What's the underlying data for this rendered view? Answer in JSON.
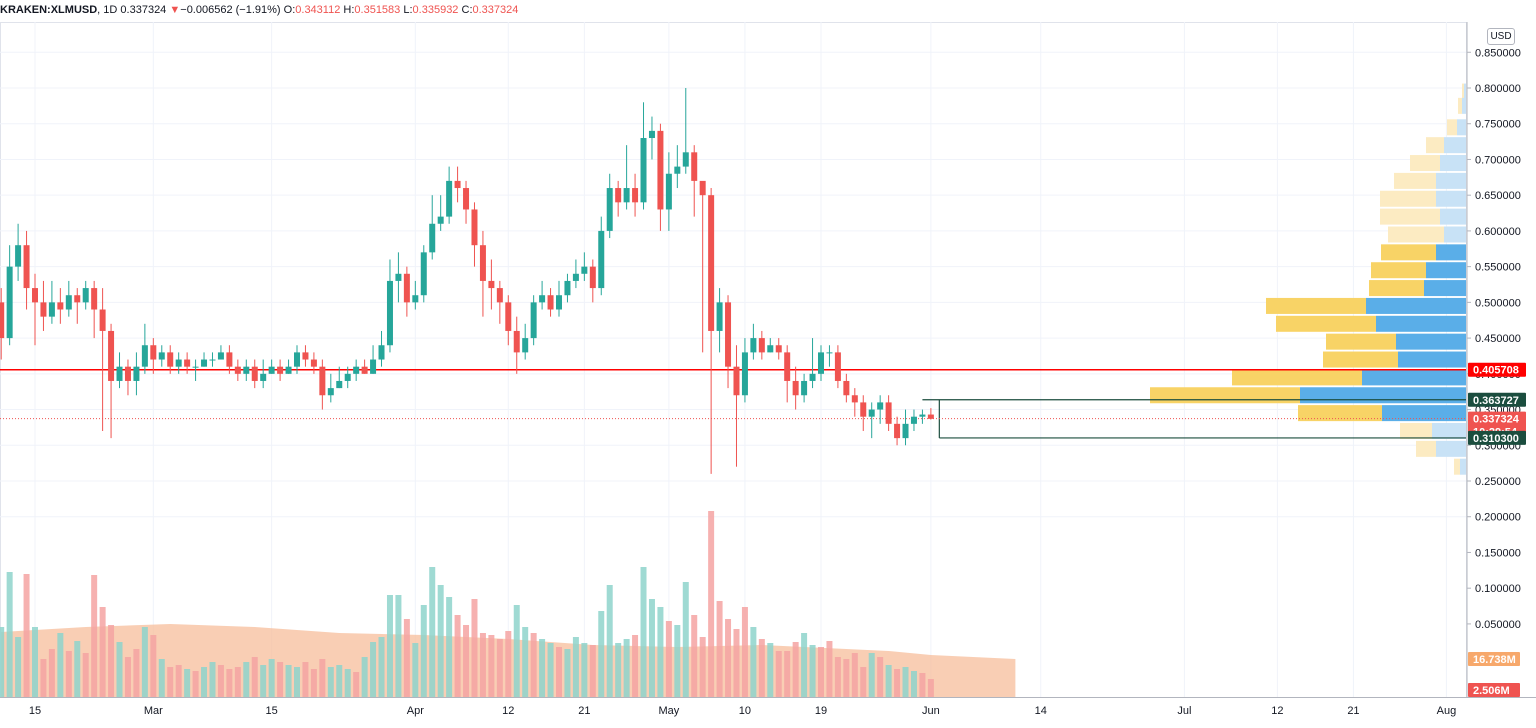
{
  "header": {
    "symbol": "KRAKEN:XLMUSD",
    "interval": "1D",
    "last": "0.337324",
    "arrow": "▼",
    "change": "−0.006562 (−1.91%)",
    "o_label": "O:",
    "o": "0.343112",
    "h_label": "H:",
    "h": "0.351583",
    "l_label": "L:",
    "l": "0.335932",
    "c_label": "C:",
    "c": "0.337324"
  },
  "currency": "USD",
  "colors": {
    "up": "#26a69a",
    "down": "#ef5350",
    "vol_up": "#8ed3cb",
    "vol_down": "#f4a3a2",
    "vol_ma": "#f7b994",
    "level": "#ff0000",
    "box": "#1b4d3e",
    "vp_blue": "#5aaee8",
    "vp_yellow": "#f8d366",
    "vp_blue_light": "#c8e2f6",
    "vp_yellow_light": "#fcebc2"
  },
  "chart_data": {
    "type": "candlestick",
    "y_ticks": [
      "0.850000",
      "0.800000",
      "0.750000",
      "0.700000",
      "0.650000",
      "0.600000",
      "0.550000",
      "0.500000",
      "0.450000",
      "0.400000",
      "0.350000",
      "0.300000",
      "0.250000",
      "0.200000",
      "0.150000",
      "0.100000",
      "0.050000"
    ],
    "y_tick_values": [
      0.85,
      0.8,
      0.75,
      0.7,
      0.65,
      0.6,
      0.55,
      0.5,
      0.45,
      0.4,
      0.35,
      0.3,
      0.25,
      0.2,
      0.15,
      0.1,
      0.05
    ],
    "ylim": [
      0.0,
      0.87
    ],
    "x_ticks": [
      {
        "label": "15",
        "day": 0
      },
      {
        "label": "Mar",
        "day": 14
      },
      {
        "label": "15",
        "day": 28
      },
      {
        "label": "Apr",
        "day": 45
      },
      {
        "label": "12",
        "day": 56
      },
      {
        "label": "21",
        "day": 65
      },
      {
        "label": "May",
        "day": 75
      },
      {
        "label": "10",
        "day": 84
      },
      {
        "label": "19",
        "day": 93
      },
      {
        "label": "Jun",
        "day": 106
      },
      {
        "label": "14",
        "day": 119
      },
      {
        "label": "Jul",
        "day": 136
      },
      {
        "label": "12",
        "day": 147
      },
      {
        "label": "21",
        "day": 156
      },
      {
        "label": "Aug",
        "day": 167
      }
    ],
    "price_tags": {
      "level": "0.405708",
      "box_top": "0.363727",
      "last": "0.337324",
      "countdown": "10:29:54",
      "box_bottom": "0.310300",
      "vol_ma": "16.738M",
      "vol_last": "2.506M"
    },
    "level_value": 0.4057,
    "box": {
      "top": 0.3637,
      "bottom": 0.3103,
      "start_day": 110,
      "end_day": 165
    },
    "last_value": 0.3373,
    "candles": [
      [
        0.5,
        0.45,
        0.52,
        0.42
      ],
      [
        0.45,
        0.55,
        0.58,
        0.44
      ],
      [
        0.55,
        0.58,
        0.61,
        0.53
      ],
      [
        0.58,
        0.52,
        0.6,
        0.49
      ],
      [
        0.52,
        0.5,
        0.54,
        0.44
      ],
      [
        0.5,
        0.48,
        0.53,
        0.46
      ],
      [
        0.48,
        0.5,
        0.53,
        0.47
      ],
      [
        0.5,
        0.49,
        0.52,
        0.47
      ],
      [
        0.49,
        0.51,
        0.53,
        0.48
      ],
      [
        0.51,
        0.5,
        0.52,
        0.47
      ],
      [
        0.5,
        0.52,
        0.53,
        0.49
      ],
      [
        0.52,
        0.49,
        0.53,
        0.45
      ],
      [
        0.49,
        0.46,
        0.52,
        0.32
      ],
      [
        0.46,
        0.39,
        0.47,
        0.31
      ],
      [
        0.39,
        0.41,
        0.43,
        0.38
      ],
      [
        0.41,
        0.39,
        0.42,
        0.37
      ],
      [
        0.39,
        0.41,
        0.43,
        0.37
      ],
      [
        0.41,
        0.44,
        0.47,
        0.4
      ],
      [
        0.44,
        0.42,
        0.45,
        0.4
      ],
      [
        0.42,
        0.43,
        0.44,
        0.41
      ],
      [
        0.43,
        0.41,
        0.44,
        0.4
      ],
      [
        0.41,
        0.42,
        0.43,
        0.4
      ],
      [
        0.42,
        0.41,
        0.43,
        0.4
      ],
      [
        0.41,
        0.41,
        0.42,
        0.39
      ],
      [
        0.41,
        0.42,
        0.43,
        0.41
      ],
      [
        0.42,
        0.42,
        0.43,
        0.41
      ],
      [
        0.42,
        0.43,
        0.44,
        0.42
      ],
      [
        0.43,
        0.41,
        0.44,
        0.4
      ],
      [
        0.41,
        0.4,
        0.42,
        0.39
      ],
      [
        0.4,
        0.41,
        0.42,
        0.39
      ],
      [
        0.41,
        0.39,
        0.42,
        0.38
      ],
      [
        0.39,
        0.4,
        0.42,
        0.38
      ],
      [
        0.4,
        0.41,
        0.42,
        0.4
      ],
      [
        0.41,
        0.4,
        0.42,
        0.39
      ],
      [
        0.4,
        0.41,
        0.42,
        0.4
      ],
      [
        0.41,
        0.43,
        0.44,
        0.4
      ],
      [
        0.43,
        0.42,
        0.44,
        0.41
      ],
      [
        0.42,
        0.41,
        0.43,
        0.4
      ],
      [
        0.41,
        0.37,
        0.42,
        0.35
      ],
      [
        0.37,
        0.38,
        0.4,
        0.36
      ],
      [
        0.38,
        0.39,
        0.41,
        0.38
      ],
      [
        0.39,
        0.4,
        0.41,
        0.38
      ],
      [
        0.4,
        0.41,
        0.42,
        0.39
      ],
      [
        0.41,
        0.4,
        0.42,
        0.4
      ],
      [
        0.4,
        0.42,
        0.44,
        0.4
      ],
      [
        0.42,
        0.44,
        0.46,
        0.41
      ],
      [
        0.44,
        0.53,
        0.56,
        0.43
      ],
      [
        0.53,
        0.54,
        0.57,
        0.5
      ],
      [
        0.54,
        0.5,
        0.55,
        0.48
      ],
      [
        0.5,
        0.51,
        0.53,
        0.49
      ],
      [
        0.51,
        0.57,
        0.58,
        0.5
      ],
      [
        0.57,
        0.61,
        0.65,
        0.56
      ],
      [
        0.61,
        0.62,
        0.65,
        0.6
      ],
      [
        0.62,
        0.67,
        0.69,
        0.61
      ],
      [
        0.67,
        0.66,
        0.69,
        0.64
      ],
      [
        0.66,
        0.63,
        0.67,
        0.61
      ],
      [
        0.63,
        0.58,
        0.64,
        0.55
      ],
      [
        0.58,
        0.53,
        0.6,
        0.48
      ],
      [
        0.53,
        0.52,
        0.56,
        0.49
      ],
      [
        0.52,
        0.5,
        0.53,
        0.47
      ],
      [
        0.5,
        0.46,
        0.51,
        0.44
      ],
      [
        0.46,
        0.43,
        0.48,
        0.4
      ],
      [
        0.43,
        0.45,
        0.47,
        0.42
      ],
      [
        0.45,
        0.5,
        0.51,
        0.44
      ],
      [
        0.5,
        0.51,
        0.53,
        0.49
      ],
      [
        0.51,
        0.49,
        0.52,
        0.48
      ],
      [
        0.49,
        0.51,
        0.53,
        0.48
      ],
      [
        0.51,
        0.53,
        0.54,
        0.5
      ],
      [
        0.53,
        0.54,
        0.56,
        0.52
      ],
      [
        0.54,
        0.55,
        0.57,
        0.53
      ],
      [
        0.55,
        0.52,
        0.56,
        0.5
      ],
      [
        0.52,
        0.6,
        0.62,
        0.51
      ],
      [
        0.6,
        0.66,
        0.68,
        0.59
      ],
      [
        0.66,
        0.64,
        0.67,
        0.62
      ],
      [
        0.64,
        0.66,
        0.72,
        0.63
      ],
      [
        0.66,
        0.64,
        0.68,
        0.62
      ],
      [
        0.64,
        0.73,
        0.78,
        0.63
      ],
      [
        0.73,
        0.74,
        0.76,
        0.7
      ],
      [
        0.74,
        0.63,
        0.75,
        0.6
      ],
      [
        0.63,
        0.68,
        0.71,
        0.6
      ],
      [
        0.68,
        0.69,
        0.72,
        0.66
      ],
      [
        0.69,
        0.71,
        0.8,
        0.68
      ],
      [
        0.71,
        0.67,
        0.72,
        0.62
      ],
      [
        0.67,
        0.65,
        0.66,
        0.43
      ],
      [
        0.65,
        0.46,
        0.66,
        0.26
      ],
      [
        0.46,
        0.5,
        0.52,
        0.43
      ],
      [
        0.5,
        0.41,
        0.51,
        0.38
      ],
      [
        0.41,
        0.37,
        0.44,
        0.27
      ],
      [
        0.37,
        0.43,
        0.45,
        0.36
      ],
      [
        0.43,
        0.45,
        0.47,
        0.42
      ],
      [
        0.45,
        0.43,
        0.46,
        0.42
      ],
      [
        0.43,
        0.44,
        0.45,
        0.43
      ],
      [
        0.44,
        0.43,
        0.45,
        0.42
      ],
      [
        0.43,
        0.39,
        0.44,
        0.36
      ],
      [
        0.39,
        0.37,
        0.41,
        0.35
      ],
      [
        0.37,
        0.39,
        0.4,
        0.36
      ],
      [
        0.39,
        0.4,
        0.45,
        0.38
      ],
      [
        0.4,
        0.43,
        0.44,
        0.39
      ],
      [
        0.43,
        0.43,
        0.44,
        0.41
      ],
      [
        0.43,
        0.39,
        0.44,
        0.38
      ],
      [
        0.39,
        0.37,
        0.4,
        0.36
      ],
      [
        0.37,
        0.36,
        0.38,
        0.34
      ],
      [
        0.36,
        0.34,
        0.37,
        0.32
      ],
      [
        0.34,
        0.35,
        0.36,
        0.31
      ],
      [
        0.35,
        0.36,
        0.37,
        0.33
      ],
      [
        0.36,
        0.33,
        0.37,
        0.32
      ],
      [
        0.33,
        0.31,
        0.34,
        0.3
      ],
      [
        0.31,
        0.33,
        0.35,
        0.3
      ],
      [
        0.33,
        0.34,
        0.35,
        0.32
      ],
      [
        0.34,
        0.343,
        0.35,
        0.33
      ],
      [
        0.343,
        0.337,
        0.352,
        0.336
      ]
    ],
    "volumes": [
      [
        70,
        1
      ],
      [
        125,
        1
      ],
      [
        60,
        1
      ],
      [
        123,
        0
      ],
      [
        70,
        1
      ],
      [
        38,
        0
      ],
      [
        48,
        0
      ],
      [
        64,
        1
      ],
      [
        46,
        0
      ],
      [
        56,
        1
      ],
      [
        44,
        0
      ],
      [
        122,
        0
      ],
      [
        90,
        0
      ],
      [
        72,
        0
      ],
      [
        55,
        1
      ],
      [
        40,
        0
      ],
      [
        48,
        0
      ],
      [
        70,
        1
      ],
      [
        62,
        0
      ],
      [
        38,
        1
      ],
      [
        30,
        0
      ],
      [
        32,
        0
      ],
      [
        28,
        1
      ],
      [
        26,
        0
      ],
      [
        30,
        1
      ],
      [
        35,
        1
      ],
      [
        32,
        0
      ],
      [
        28,
        0
      ],
      [
        30,
        0
      ],
      [
        35,
        1
      ],
      [
        40,
        0
      ],
      [
        32,
        1
      ],
      [
        38,
        1
      ],
      [
        35,
        0
      ],
      [
        32,
        1
      ],
      [
        30,
        1
      ],
      [
        35,
        0
      ],
      [
        28,
        0
      ],
      [
        38,
        0
      ],
      [
        30,
        1
      ],
      [
        32,
        1
      ],
      [
        28,
        1
      ],
      [
        25,
        0
      ],
      [
        40,
        1
      ],
      [
        55,
        1
      ],
      [
        60,
        1
      ],
      [
        102,
        1
      ],
      [
        102,
        1
      ],
      [
        78,
        0
      ],
      [
        54,
        1
      ],
      [
        92,
        1
      ],
      [
        130,
        1
      ],
      [
        112,
        1
      ],
      [
        100,
        1
      ],
      [
        82,
        0
      ],
      [
        72,
        0
      ],
      [
        98,
        0
      ],
      [
        64,
        0
      ],
      [
        62,
        0
      ],
      [
        58,
        0
      ],
      [
        66,
        0
      ],
      [
        92,
        1
      ],
      [
        70,
        1
      ],
      [
        64,
        0
      ],
      [
        58,
        1
      ],
      [
        54,
        1
      ],
      [
        50,
        0
      ],
      [
        48,
        1
      ],
      [
        60,
        1
      ],
      [
        54,
        1
      ],
      [
        52,
        0
      ],
      [
        86,
        1
      ],
      [
        112,
        1
      ],
      [
        54,
        1
      ],
      [
        58,
        1
      ],
      [
        62,
        0
      ],
      [
        130,
        1
      ],
      [
        98,
        1
      ],
      [
        90,
        1
      ],
      [
        76,
        0
      ],
      [
        72,
        1
      ],
      [
        115,
        1
      ],
      [
        82,
        0
      ],
      [
        60,
        0
      ],
      [
        186,
        0
      ],
      [
        96,
        0
      ],
      [
        78,
        0
      ],
      [
        68,
        0
      ],
      [
        90,
        0
      ],
      [
        70,
        1
      ],
      [
        58,
        0
      ],
      [
        54,
        1
      ],
      [
        46,
        0
      ],
      [
        46,
        0
      ],
      [
        55,
        0
      ],
      [
        64,
        1
      ],
      [
        52,
        1
      ],
      [
        50,
        0
      ],
      [
        56,
        0
      ],
      [
        40,
        0
      ],
      [
        38,
        0
      ],
      [
        44,
        0
      ],
      [
        30,
        0
      ],
      [
        44,
        1
      ],
      [
        40,
        0
      ],
      [
        32,
        1
      ],
      [
        28,
        0
      ],
      [
        30,
        1
      ],
      [
        26,
        1
      ],
      [
        24,
        0
      ],
      [
        18,
        0
      ]
    ],
    "volume_ma": [
      [
        0,
        65
      ],
      [
        10,
        70
      ],
      [
        20,
        73
      ],
      [
        30,
        70
      ],
      [
        40,
        64
      ],
      [
        50,
        62
      ],
      [
        60,
        58
      ],
      [
        70,
        52
      ],
      [
        80,
        50
      ],
      [
        90,
        52
      ],
      [
        100,
        48
      ],
      [
        105,
        46
      ],
      [
        110,
        42
      ],
      [
        115,
        40
      ],
      [
        120,
        38
      ]
    ],
    "volume_profile": [
      {
        "p": 0.795,
        "up": 2,
        "down": 2,
        "faded": 1
      },
      {
        "p": 0.775,
        "up": 4,
        "down": 4,
        "faded": 1
      },
      {
        "p": 0.745,
        "up": 10,
        "down": 9,
        "faded": 1
      },
      {
        "p": 0.72,
        "up": 18,
        "down": 22,
        "faded": 1
      },
      {
        "p": 0.695,
        "up": 30,
        "down": 26,
        "faded": 1
      },
      {
        "p": 0.67,
        "up": 42,
        "down": 30,
        "faded": 1
      },
      {
        "p": 0.645,
        "up": 56,
        "down": 30,
        "faded": 1
      },
      {
        "p": 0.62,
        "up": 60,
        "down": 26,
        "faded": 1
      },
      {
        "p": 0.595,
        "up": 56,
        "down": 22,
        "faded": 1
      },
      {
        "p": 0.57,
        "up": 55,
        "down": 30,
        "faded": 0
      },
      {
        "p": 0.545,
        "up": 55,
        "down": 40,
        "faded": 0
      },
      {
        "p": 0.52,
        "up": 55,
        "down": 42,
        "faded": 0
      },
      {
        "p": 0.495,
        "up": 100,
        "down": 100,
        "faded": 0
      },
      {
        "p": 0.47,
        "up": 100,
        "down": 90,
        "faded": 0
      },
      {
        "p": 0.445,
        "up": 70,
        "down": 70,
        "faded": 0
      },
      {
        "p": 0.42,
        "up": 75,
        "down": 68,
        "faded": 0
      },
      {
        "p": 0.395,
        "up": 130,
        "down": 104,
        "faded": 0
      },
      {
        "p": 0.37,
        "up": 150,
        "down": 166,
        "faded": 0
      },
      {
        "p": 0.345,
        "up": 84,
        "down": 84,
        "faded": 0
      },
      {
        "p": 0.32,
        "up": 32,
        "down": 34,
        "faded": 1
      },
      {
        "p": 0.295,
        "up": 20,
        "down": 30,
        "faded": 1
      },
      {
        "p": 0.27,
        "up": 6,
        "down": 6,
        "faded": 1
      }
    ]
  }
}
